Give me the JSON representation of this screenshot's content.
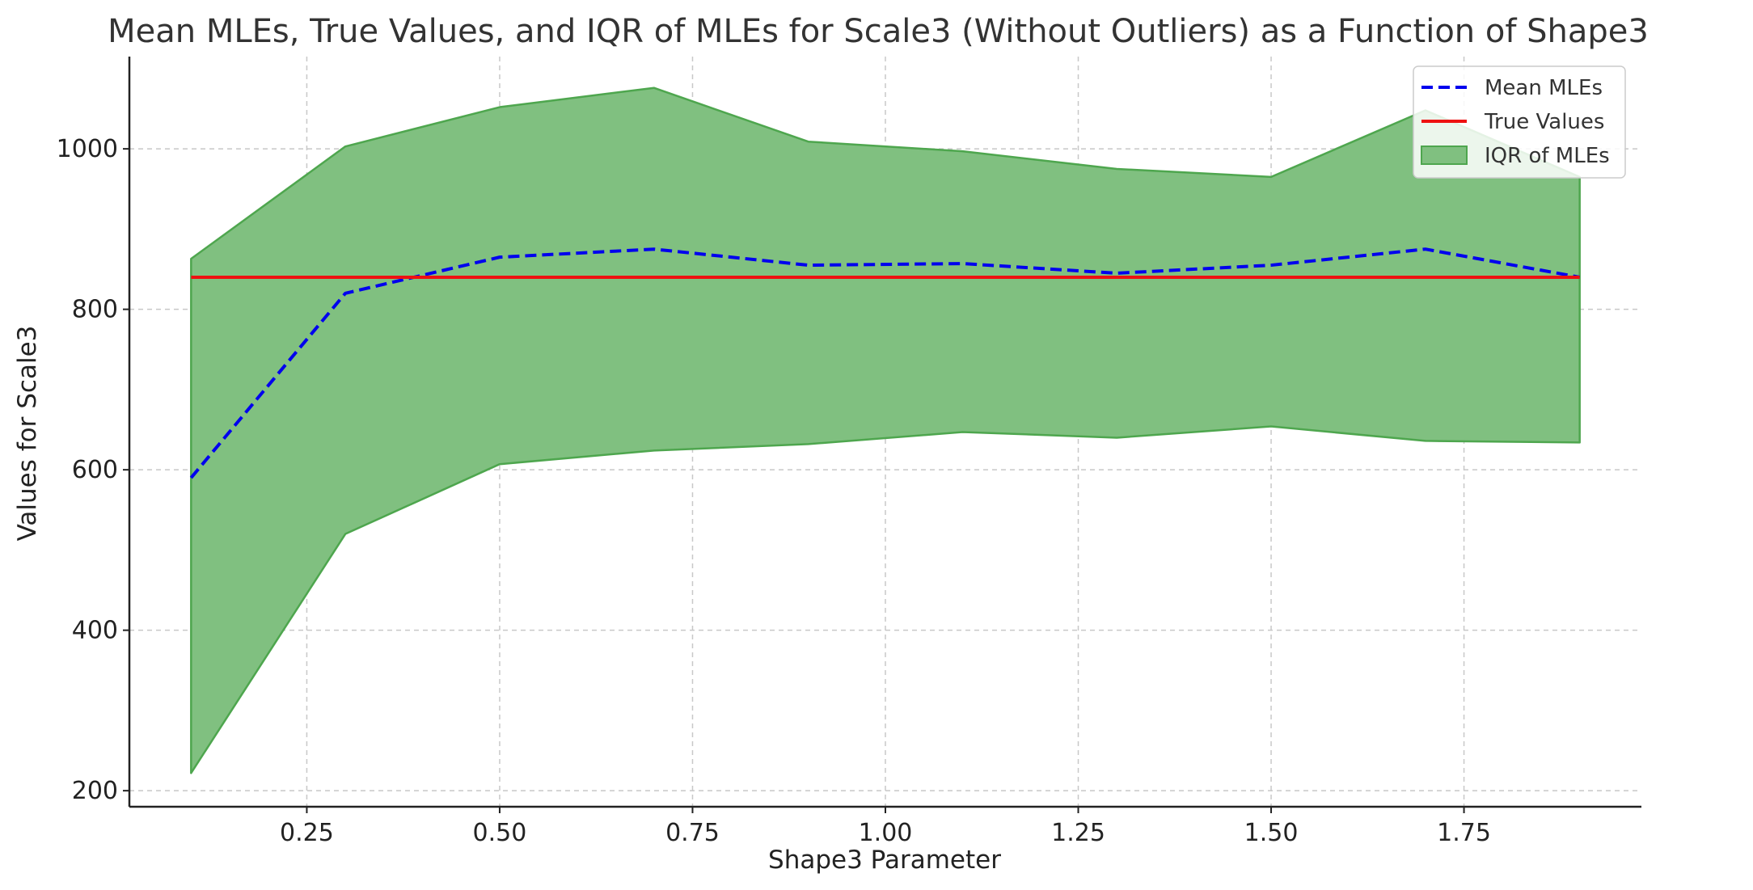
{
  "chart_data": {
    "type": "line",
    "title": "Mean MLEs, True Values, and IQR of MLEs for Scale3 (Without Outliers) as a Function of Shape3",
    "xlabel": "Shape3 Parameter",
    "ylabel": "Values for Scale3",
    "xlim": [
      0.02,
      1.98
    ],
    "ylim": [
      180,
      1115
    ],
    "x_ticks": [
      0.25,
      0.5,
      0.75,
      1.0,
      1.25,
      1.5,
      1.75
    ],
    "x_tick_labels": [
      "0.25",
      "0.50",
      "0.75",
      "1.00",
      "1.25",
      "1.50",
      "1.75"
    ],
    "y_ticks": [
      200,
      400,
      600,
      800,
      1000
    ],
    "y_tick_labels": [
      "200",
      "400",
      "600",
      "800",
      "1000"
    ],
    "grid": true,
    "legend_position": "top-right",
    "x": [
      0.1,
      0.3,
      0.5,
      0.7,
      0.9,
      1.1,
      1.3,
      1.5,
      1.7,
      1.9
    ],
    "series": [
      {
        "name": "Mean MLEs",
        "style": "dashed",
        "color": "#0000ee",
        "values": [
          590,
          820,
          865,
          875,
          855,
          857,
          845,
          855,
          875,
          840
        ]
      },
      {
        "name": "True Values",
        "style": "solid",
        "color": "#ee1111",
        "values": [
          840,
          840,
          840,
          840,
          840,
          840,
          840,
          840,
          840,
          840
        ]
      }
    ],
    "band": {
      "name": "IQR of MLEs",
      "color": "#4ea64e",
      "fill": "#80c080",
      "lower": [
        222,
        520,
        607,
        624,
        632,
        647,
        640,
        654,
        636,
        634
      ],
      "upper": [
        863,
        1003,
        1052,
        1076,
        1009,
        997,
        975,
        965,
        1048,
        965
      ]
    }
  }
}
